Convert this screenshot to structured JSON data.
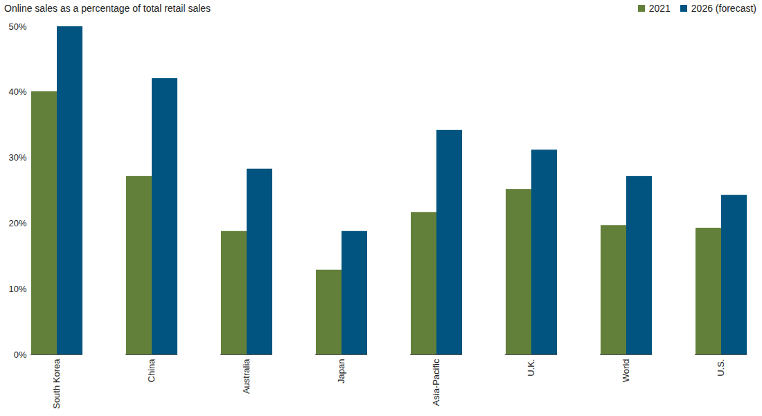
{
  "chart_data": {
    "type": "bar",
    "title": "Online sales as a percentage of total retail sales",
    "categories": [
      "South Korea",
      "China",
      "Australia",
      "Japan",
      "Asia-Pacific",
      "U.K.",
      "World",
      "U.S."
    ],
    "series": [
      {
        "name": "2021",
        "color": "#62803a",
        "values": [
          40.1,
          27.2,
          18.8,
          12.9,
          21.7,
          25.2,
          19.7,
          19.3
        ]
      },
      {
        "name": "2026 (forecast)",
        "color": "#00547f",
        "values": [
          50,
          42.1,
          28.3,
          18.8,
          34.2,
          31.2,
          27.2,
          24.3
        ]
      }
    ],
    "ylim": [
      0,
      50
    ],
    "yticks": [
      {
        "value": 0,
        "label": "0%"
      },
      {
        "value": 10,
        "label": "10%"
      },
      {
        "value": 20,
        "label": "20%"
      },
      {
        "value": 30,
        "label": "30%"
      },
      {
        "value": 40,
        "label": "40%"
      },
      {
        "value": 50,
        "label": "50%"
      }
    ],
    "grid": false,
    "legend": "top-right"
  }
}
